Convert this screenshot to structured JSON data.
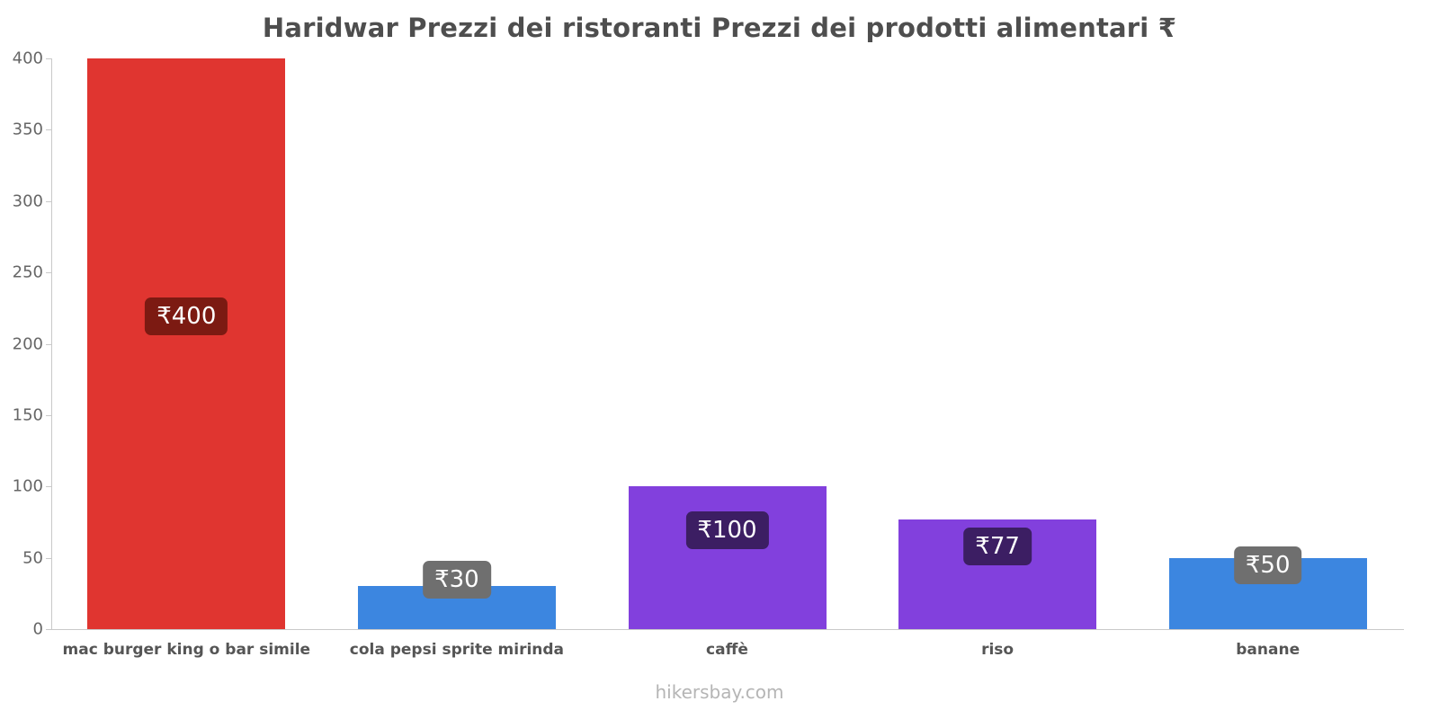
{
  "title": "Haridwar Prezzi dei ristoranti Prezzi dei prodotti alimentari ₹",
  "footer": "hikersbay.com",
  "chart_data": {
    "type": "bar",
    "categories": [
      "mac burger king o bar simile",
      "cola pepsi sprite mirinda",
      "caffè",
      "riso",
      "banane"
    ],
    "values": [
      400,
      30,
      100,
      77,
      50
    ],
    "value_labels": [
      "₹400",
      "₹30",
      "₹100",
      "₹77",
      "₹50"
    ],
    "bar_colors": [
      "#e03530",
      "#3c86e0",
      "#8240dd",
      "#8240dd",
      "#3c86e0"
    ],
    "label_bg_colors": [
      "#7c1a12",
      "#6f6f6f",
      "#3c1e63",
      "#3c1e63",
      "#6f6f6f"
    ],
    "currency": "₹",
    "ylim": [
      0,
      400
    ],
    "yticks": [
      0,
      50,
      100,
      150,
      200,
      250,
      300,
      350,
      400
    ],
    "xlabel": "",
    "ylabel": "",
    "grid": false,
    "legend": false
  },
  "colors": {
    "axis": "#c9c9c9",
    "tick_text": "#666666",
    "title_text": "#4e4e4e",
    "category_text": "#555555",
    "footer_text": "#b5b5b5"
  }
}
